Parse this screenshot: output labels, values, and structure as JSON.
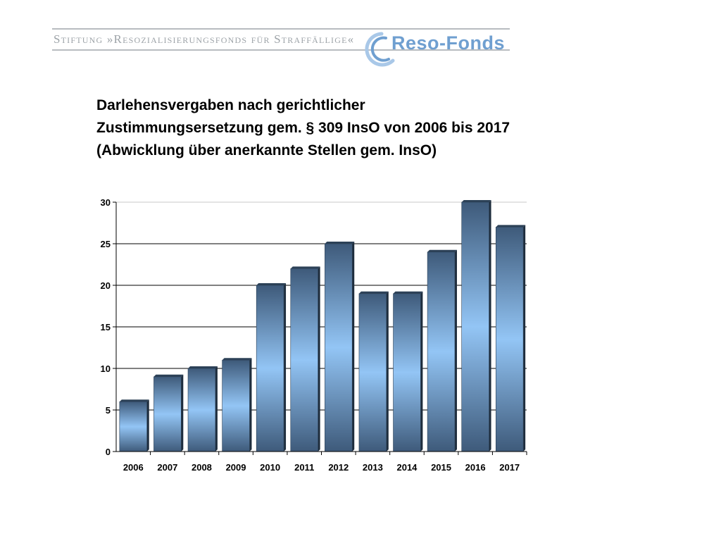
{
  "header": {
    "foundation_name": "Stiftung »Resozialisierungsfonds für Straffällige«",
    "logo_text": "Reso-Fonds"
  },
  "title_lines": [
    "Darlehensvergaben nach gerichtlicher",
    "Zustimmungsersetzung gem. § 309 InsO von 2006 bis 2017",
    "(Abwicklung über anerkannte Stellen gem. InsO)"
  ],
  "colors": {
    "bar_dark": "#3e5a7a",
    "bar_light": "#93c5f5",
    "header_gray": "#9da3a8",
    "logo_blue": "#6f9fd0"
  },
  "chart_data": {
    "type": "bar",
    "categories": [
      "2006",
      "2007",
      "2008",
      "2009",
      "2010",
      "2011",
      "2012",
      "2013",
      "2014",
      "2015",
      "2016",
      "2017"
    ],
    "values": [
      6,
      9,
      10,
      11,
      20,
      22,
      25,
      19,
      19,
      24,
      30,
      27
    ],
    "yticks": [
      "0",
      "5",
      "10",
      "15",
      "20",
      "25",
      "30"
    ],
    "ylim": [
      0,
      30
    ],
    "grid": true,
    "legend": "none",
    "xlabel": "",
    "ylabel": ""
  }
}
